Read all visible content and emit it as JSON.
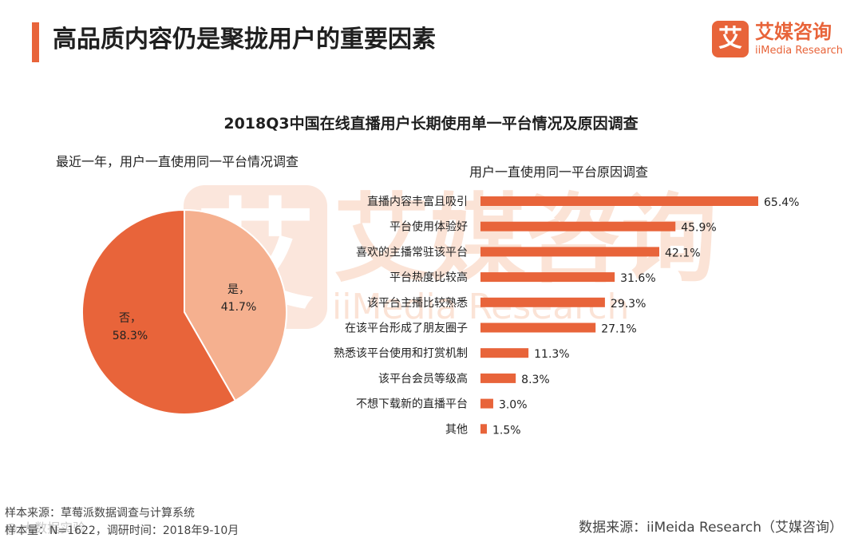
{
  "header": {
    "title": "高品质内容仍是聚拢用户的重要因素",
    "logo_box": "艾",
    "logo_cn": "艾媒咨询",
    "logo_en": "iiMedia Research"
  },
  "watermark": {
    "box": "艾",
    "cn": "艾媒咨询",
    "en": "iiMedia Research"
  },
  "chart_title": "2018Q3中国在线直播用户长期使用单一平台情况及原因调查",
  "colors": {
    "accent": "#e8643a",
    "pie_yes": "#f5b08f",
    "pie_no": "#e8643a",
    "bar": "#e8643a"
  },
  "chart_data": [
    {
      "type": "pie",
      "title": "最近一年，用户一直使用同一平台情况调查",
      "categories": [
        "是，",
        "否，"
      ],
      "values": [
        41.7,
        58.3
      ],
      "value_labels": [
        "41.7%",
        "58.3%"
      ]
    },
    {
      "type": "bar",
      "orientation": "horizontal",
      "title": "用户一直使用同一平台原因调查",
      "categories": [
        "直播内容丰富且吸引",
        "平台使用体验好",
        "喜欢的主播常驻该平台",
        "平台热度比较高",
        "该平台主播比较熟悉",
        "在该平台形成了朋友圈子",
        "熟悉该平台使用和打赏机制",
        "该平台会员等级高",
        "不想下载新的直播平台",
        "其他"
      ],
      "values": [
        65.4,
        45.9,
        42.1,
        31.6,
        29.3,
        27.1,
        11.3,
        8.3,
        3.0,
        1.5
      ],
      "value_labels": [
        "65.4%",
        "45.9%",
        "42.1%",
        "31.6%",
        "29.3%",
        "27.1%",
        "11.3%",
        "8.3%",
        "3.0%",
        "1.5%"
      ],
      "xlim": [
        0,
        70
      ]
    }
  ],
  "footer": {
    "sample_source": "样本来源：草莓派数据调查与计算系统",
    "sample_size": "样本量：N=1622，调研时间：2018年9-10月",
    "data_source": "数据来源：iiMeida Research（艾媒咨询）",
    "source_watermark": "@ 大数据实验"
  }
}
